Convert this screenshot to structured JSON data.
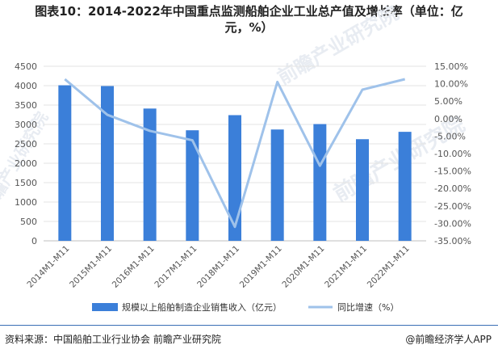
{
  "title_line1": "图表10：2014-2022年中国重点监测船舶企业工业总产值及增长率（单位：亿",
  "title_line2": "元，%）",
  "source": "资料来源：中国船舶工业行业协会 前瞻产业研究院",
  "brand": "@前瞻经济学人APP",
  "watermark": "前瞻产业研究院",
  "colors": {
    "bar": "#3b7fd9",
    "line": "#9fc2ea",
    "grid": "#e3e3e3",
    "axis": "#bfbfbf"
  },
  "chart_data": {
    "type": "bar",
    "categories": [
      "2014M1-M11",
      "2015M1-M11",
      "2016M1-M11",
      "2017M1-M11",
      "2018M1-M11",
      "2019M1-M11",
      "2020M1-M11",
      "2021M1-M11",
      "2022M1-M11"
    ],
    "series": [
      {
        "name": "规模以上船舶制造企业销售收入（亿元）",
        "type": "bar",
        "axis": "left",
        "values": [
          4010,
          3990,
          3410,
          2850,
          3240,
          2870,
          3010,
          2620,
          2810
        ]
      },
      {
        "name": "同比增速（%）",
        "type": "line",
        "axis": "right",
        "values": [
          11.3,
          1.1,
          -3.5,
          -6.2,
          -31.0,
          10.5,
          -13.5,
          8.3,
          11.3
        ]
      }
    ],
    "left_axis": {
      "min": 0,
      "max": 4500,
      "step": 500,
      "ticks": [
        "0",
        "500",
        "1000",
        "1500",
        "2000",
        "2500",
        "3000",
        "3500",
        "4000",
        "4500"
      ]
    },
    "right_axis": {
      "min": -35,
      "max": 15,
      "step": 5,
      "ticks": [
        "-35.00%",
        "-30.00%",
        "-25.00%",
        "-20.00%",
        "-15.00%",
        "-10.00%",
        "-5.00%",
        "0.00%",
        "5.00%",
        "10.00%",
        "15.00%"
      ]
    },
    "grid": true,
    "legend_position": "bottom"
  }
}
